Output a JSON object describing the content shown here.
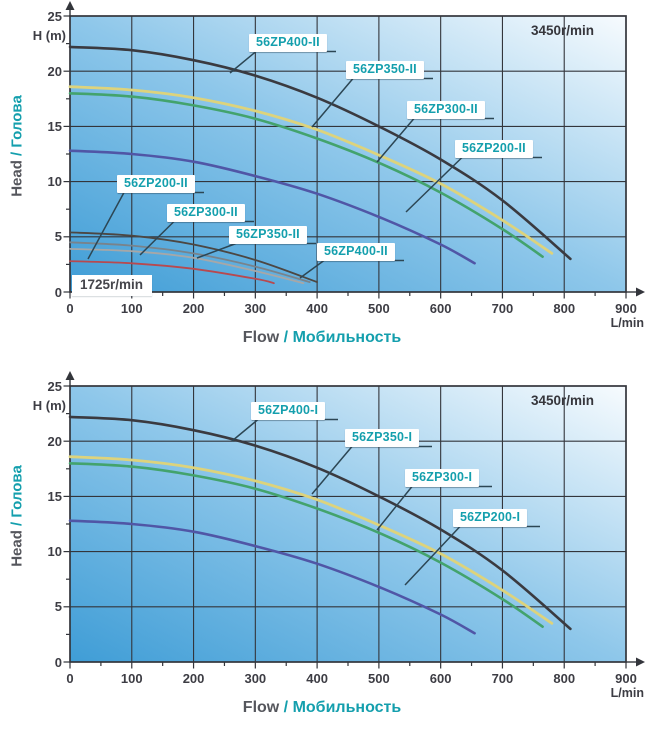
{
  "colors": {
    "teal": "#149fad",
    "text_dark": "#3d3d44",
    "grid": "#33353b",
    "leader": "#2c4654",
    "label_box_bg": "#ffffff",
    "plot_gradient": [
      "#3f9dd6",
      "#8ec7ea",
      "#f7fbfe"
    ]
  },
  "chart_data": [
    {
      "type": "line",
      "name": "56ZP-II series pump head-flow curves",
      "rpm_label": "3450r/min",
      "rpm_label_secondary": "1725r/min",
      "y_unit": "H (m)",
      "x_unit": "L/min",
      "ylabel_en": "Head",
      "ylabel_sep": " / ",
      "ylabel_ru": "Голова",
      "xlabel_en": "Flow",
      "xlabel_sep": " / ",
      "xlabel_ru": "Мобильность",
      "xlim": [
        0,
        900
      ],
      "ylim": [
        0,
        25
      ],
      "x_ticks": [
        0,
        100,
        200,
        300,
        400,
        500,
        600,
        700,
        800,
        900
      ],
      "y_ticks": [
        0,
        5,
        10,
        15,
        20,
        25
      ],
      "x_minor_step": 50,
      "y_minor_step": 2.5,
      "grid": true,
      "legend": "inline curve labels",
      "series": [
        {
          "name": "56ZP400-II",
          "rpm": 3450,
          "color": "#3a3a40",
          "width": 2.6,
          "points": [
            [
              0,
              22.2
            ],
            [
              100,
              21.9
            ],
            [
              200,
              21.0
            ],
            [
              300,
              19.6
            ],
            [
              400,
              17.6
            ],
            [
              500,
              15.0
            ],
            [
              600,
              12.0
            ],
            [
              700,
              8.3
            ],
            [
              810,
              3.0
            ]
          ]
        },
        {
          "name": "56ZP350-II",
          "rpm": 3450,
          "color": "#ddd37c",
          "width": 2.8,
          "points": [
            [
              0,
              18.6
            ],
            [
              100,
              18.3
            ],
            [
              200,
              17.6
            ],
            [
              300,
              16.4
            ],
            [
              400,
              14.7
            ],
            [
              500,
              12.4
            ],
            [
              600,
              9.8
            ],
            [
              700,
              6.5
            ],
            [
              780,
              3.5
            ]
          ]
        },
        {
          "name": "56ZP300-II",
          "rpm": 3450,
          "color": "#43a36d",
          "width": 2.6,
          "points": [
            [
              0,
              18.0
            ],
            [
              100,
              17.7
            ],
            [
              200,
              16.9
            ],
            [
              300,
              15.7
            ],
            [
              400,
              13.9
            ],
            [
              500,
              11.7
            ],
            [
              600,
              9.0
            ],
            [
              700,
              5.7
            ],
            [
              765,
              3.2
            ]
          ]
        },
        {
          "name": "56ZP200-II",
          "rpm": 3450,
          "color": "#5056a6",
          "width": 2.6,
          "points": [
            [
              0,
              12.8
            ],
            [
              100,
              12.5
            ],
            [
              200,
              11.8
            ],
            [
              300,
              10.5
            ],
            [
              400,
              8.9
            ],
            [
              500,
              6.8
            ],
            [
              600,
              4.3
            ],
            [
              655,
              2.6
            ]
          ]
        },
        {
          "name": "56ZP400-II",
          "rpm": 1725,
          "color": "#4c4743",
          "width": 1.8,
          "points": [
            [
              0,
              5.4
            ],
            [
              100,
              5.1
            ],
            [
              200,
              4.3
            ],
            [
              300,
              2.9
            ],
            [
              400,
              0.9
            ]
          ]
        },
        {
          "name": "56ZP350-II",
          "rpm": 1725,
          "color": "#79838b",
          "width": 1.8,
          "points": [
            [
              0,
              4.5
            ],
            [
              100,
              4.2
            ],
            [
              200,
              3.5
            ],
            [
              300,
              2.3
            ],
            [
              388,
              0.9
            ]
          ]
        },
        {
          "name": "56ZP300-II",
          "rpm": 1725,
          "color": "#a7a7a7",
          "width": 1.8,
          "points": [
            [
              0,
              3.9
            ],
            [
              100,
              3.7
            ],
            [
              200,
              3.1
            ],
            [
              300,
              1.9
            ],
            [
              378,
              0.8
            ]
          ]
        },
        {
          "name": "56ZP200-II",
          "rpm": 1725,
          "color": "#b8494f",
          "width": 1.8,
          "points": [
            [
              0,
              2.8
            ],
            [
              100,
              2.6
            ],
            [
              200,
              2.1
            ],
            [
              300,
              1.2
            ],
            [
              330,
              0.8
            ]
          ]
        }
      ],
      "curve_labels": [
        {
          "text": "56ZP400-II",
          "x": 249,
          "y": 34,
          "leader": [
            230,
            73
          ]
        },
        {
          "text": "56ZP350-II",
          "x": 346,
          "y": 61,
          "leader": [
            312,
            127
          ]
        },
        {
          "text": "56ZP300-II",
          "x": 407,
          "y": 101,
          "leader": [
            377,
            162
          ]
        },
        {
          "text": "56ZP200-II",
          "x": 455,
          "y": 140,
          "leader": [
            406,
            212
          ]
        },
        {
          "text": "56ZP200-II",
          "x": 117,
          "y": 175,
          "leader": [
            88,
            259
          ]
        },
        {
          "text": "56ZP300-II",
          "x": 167,
          "y": 204,
          "leader": [
            140,
            255
          ]
        },
        {
          "text": "56ZP350-II",
          "x": 229,
          "y": 226,
          "leader": [
            197,
            258
          ]
        },
        {
          "text": "56ZP400-II",
          "x": 317,
          "y": 243,
          "leader": [
            300,
            278
          ]
        }
      ]
    },
    {
      "type": "line",
      "name": "56ZP-I series pump head-flow curves",
      "rpm_label": "3450r/min",
      "y_unit": "H (m)",
      "x_unit": "L/min",
      "ylabel_en": "Head",
      "ylabel_sep": " / ",
      "ylabel_ru": "Голова",
      "xlabel_en": "Flow",
      "xlabel_sep": " / ",
      "xlabel_ru": "Мобильность",
      "xlim": [
        0,
        900
      ],
      "ylim": [
        0,
        25
      ],
      "x_ticks": [
        0,
        100,
        200,
        300,
        400,
        500,
        600,
        700,
        800,
        900
      ],
      "y_ticks": [
        0,
        5,
        10,
        15,
        20,
        25
      ],
      "x_minor_step": 50,
      "y_minor_step": 2.5,
      "grid": true,
      "legend": "inline curve labels",
      "series": [
        {
          "name": "56ZP400-I",
          "rpm": 3450,
          "color": "#3a3a40",
          "width": 2.6,
          "points": [
            [
              0,
              22.2
            ],
            [
              100,
              21.9
            ],
            [
              200,
              21.0
            ],
            [
              300,
              19.6
            ],
            [
              400,
              17.6
            ],
            [
              500,
              15.0
            ],
            [
              600,
              12.0
            ],
            [
              700,
              8.3
            ],
            [
              810,
              3.0
            ]
          ]
        },
        {
          "name": "56ZP350-I",
          "rpm": 3450,
          "color": "#ddd37c",
          "width": 2.8,
          "points": [
            [
              0,
              18.6
            ],
            [
              100,
              18.3
            ],
            [
              200,
              17.6
            ],
            [
              300,
              16.4
            ],
            [
              400,
              14.7
            ],
            [
              500,
              12.4
            ],
            [
              600,
              9.8
            ],
            [
              700,
              6.5
            ],
            [
              780,
              3.5
            ]
          ]
        },
        {
          "name": "56ZP300-I",
          "rpm": 3450,
          "color": "#43a36d",
          "width": 2.6,
          "points": [
            [
              0,
              18.0
            ],
            [
              100,
              17.7
            ],
            [
              200,
              16.9
            ],
            [
              300,
              15.7
            ],
            [
              400,
              13.9
            ],
            [
              500,
              11.7
            ],
            [
              600,
              9.0
            ],
            [
              700,
              5.7
            ],
            [
              765,
              3.2
            ]
          ]
        },
        {
          "name": "56ZP200-I",
          "rpm": 3450,
          "color": "#5056a6",
          "width": 2.6,
          "points": [
            [
              0,
              12.8
            ],
            [
              100,
              12.5
            ],
            [
              200,
              11.8
            ],
            [
              300,
              10.5
            ],
            [
              400,
              8.9
            ],
            [
              500,
              6.8
            ],
            [
              600,
              4.3
            ],
            [
              655,
              2.6
            ]
          ]
        }
      ],
      "curve_labels": [
        {
          "text": "56ZP400-I",
          "x": 251,
          "y": 32,
          "leader": [
            232,
            71
          ]
        },
        {
          "text": "56ZP350-I",
          "x": 345,
          "y": 59,
          "leader": [
            312,
            124
          ]
        },
        {
          "text": "56ZP300-I",
          "x": 405,
          "y": 99,
          "leader": [
            377,
            160
          ]
        },
        {
          "text": "56ZP200-I",
          "x": 453,
          "y": 139,
          "leader": [
            405,
            215
          ]
        }
      ]
    }
  ]
}
